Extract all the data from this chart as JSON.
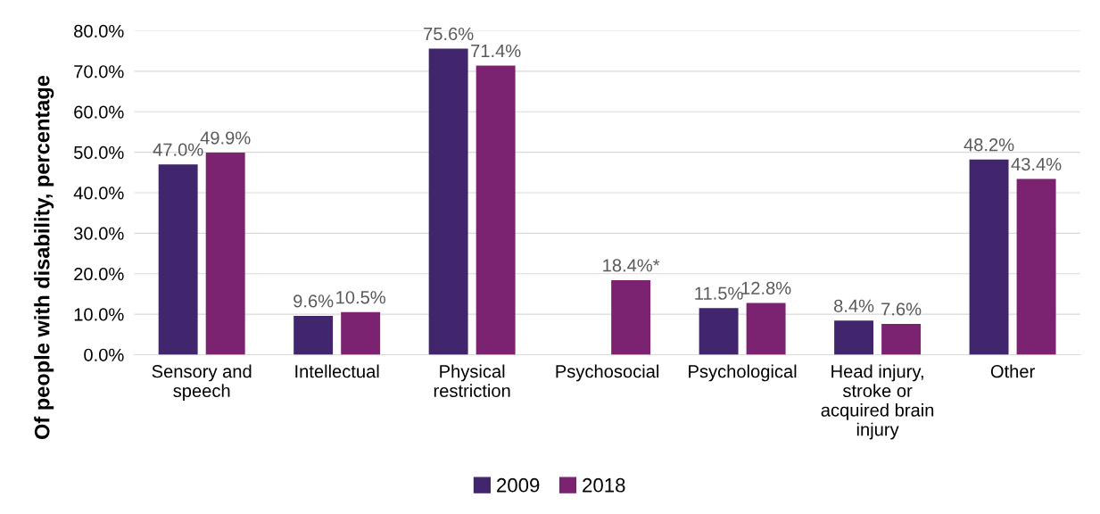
{
  "chart_data": {
    "type": "bar",
    "ylabel": "Of people with disability, percentage",
    "categories": [
      "Sensory and\nspeech",
      "Intellectual",
      "Physical\nrestriction",
      "Psychosocial",
      "Psychological",
      "Head injury,\nstroke or\nacquired brain\ninjury",
      "Other"
    ],
    "series": [
      {
        "name": "2009",
        "color": "#41266e",
        "values": [
          47.0,
          9.6,
          75.6,
          null,
          11.5,
          8.4,
          48.2
        ],
        "value_labels": [
          "47.0%",
          "9.6%",
          "75.6%",
          null,
          "11.5%",
          "8.4%",
          "48.2%"
        ]
      },
      {
        "name": "2018",
        "color": "#7b2270",
        "values": [
          49.9,
          10.5,
          71.4,
          18.4,
          12.8,
          7.6,
          43.4
        ],
        "value_labels": [
          "49.9%",
          "10.5%",
          "71.4%",
          "18.4%*",
          "12.8%",
          "7.6%",
          "43.4%"
        ]
      }
    ],
    "ylim": [
      0,
      80
    ],
    "yticks": [
      {
        "value": 0,
        "label": "0.0%"
      },
      {
        "value": 10,
        "label": "10.0%"
      },
      {
        "value": 20,
        "label": "20.0%"
      },
      {
        "value": 30,
        "label": "30.0%"
      },
      {
        "value": 40,
        "label": "40.0%"
      },
      {
        "value": 50,
        "label": "50.0%"
      },
      {
        "value": 60,
        "label": "60.0%"
      },
      {
        "value": 70,
        "label": "70.0%"
      },
      {
        "value": 80,
        "label": "80.0%"
      }
    ],
    "grid": "y",
    "legend": "bottom"
  }
}
